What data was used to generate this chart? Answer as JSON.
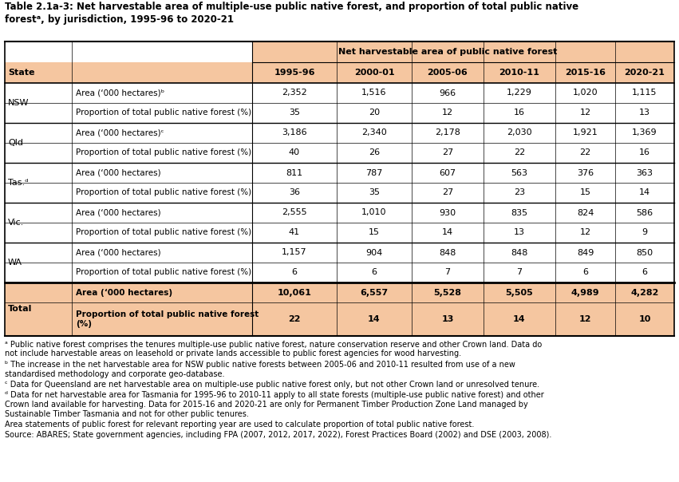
{
  "title_line1": "Table 2.1a-3: Net harvestable area of multiple-use public native forest, and proportion of total public native",
  "title_line2": "forestᵃ, by jurisdiction, 1995-96 to 2020-21",
  "col_header_main": "Net harvestable area of public native forest",
  "col_years": [
    "1995-96",
    "2000-01",
    "2005-06",
    "2010-11",
    "2015-16",
    "2020-21"
  ],
  "states": [
    "NSW",
    "Qld",
    "Tas.ᵈ",
    "Vic.",
    "WA"
  ],
  "row_labels": [
    [
      "Area (‘000 hectares)ᵇ",
      "Proportion of total public native forest (%)"
    ],
    [
      "Area (‘000 hectares)ᶜ",
      "Proportion of total public native forest (%)"
    ],
    [
      "Area (‘000 hectares)",
      "Proportion of total public native forest (%)"
    ],
    [
      "Area (‘000 hectares)",
      "Proportion of total public native forest (%)"
    ],
    [
      "Area (‘000 hectares)",
      "Proportion of total public native forest (%)"
    ]
  ],
  "data_formatted": [
    [
      [
        "2,352",
        "1,516",
        "966",
        "1,229",
        "1,020",
        "1,115"
      ],
      [
        "35",
        "20",
        "12",
        "16",
        "12",
        "13"
      ]
    ],
    [
      [
        "3,186",
        "2,340",
        "2,178",
        "2,030",
        "1,921",
        "1,369"
      ],
      [
        "40",
        "26",
        "27",
        "22",
        "22",
        "16"
      ]
    ],
    [
      [
        "811",
        "787",
        "607",
        "563",
        "376",
        "363"
      ],
      [
        "36",
        "35",
        "27",
        "23",
        "15",
        "14"
      ]
    ],
    [
      [
        "2,555",
        "1,010",
        "930",
        "835",
        "824",
        "586"
      ],
      [
        "41",
        "15",
        "14",
        "13",
        "12",
        "9"
      ]
    ],
    [
      [
        "1,157",
        "904",
        "848",
        "848",
        "849",
        "850"
      ],
      [
        "6",
        "6",
        "7",
        "7",
        "6",
        "6"
      ]
    ]
  ],
  "total_label_area": "Area (‘000 hectares)",
  "total_label_prop": "Proportion of total public native forest\n(%)",
  "total_data_formatted": [
    [
      "10,061",
      "6,557",
      "5,528",
      "5,505",
      "4,989",
      "4,282"
    ],
    [
      "22",
      "14",
      "13",
      "14",
      "12",
      "10"
    ]
  ],
  "header_bg": "#F5C6A0",
  "total_bg": "#F5C6A0",
  "white_bg": "#FFFFFF",
  "footnotes": [
    "ᵃ Public native forest comprises the tenures multiple-use public native forest, nature conservation reserve and other Crown land. Data do not include harvestable areas on leasehold or private lands accessible to public forest agencies for wood harvesting.",
    "ᵇ The increase in the net harvestable area for NSW public native forests between 2005-06 and 2010-11 resulted from use of a new standardised methodology and corporate geo-database.",
    "ᶜ Data for Queensland are net harvestable area on multiple-use public native forest only, but not other Crown land or unresolved tenure.",
    "ᵈ Data for net harvestable area for Tasmania for 1995-96 to 2010-11 apply to all state forests (multiple-use public native forest) and other Crown land available for harvesting. Data for 2015-16 and 2020-21 are only for Permanent Timber Production Zone Land managed by Sustainable Timber Tasmania and not for other public tenures.",
    "Area statements of public forest for relevant reporting year are used to calculate proportion of total public native forest.",
    "Source: ABARES; State government agencies, including FPA (2007, 2012, 2017, 2022), Forest Practices Board (2002) and DSE (2003, 2008)."
  ]
}
